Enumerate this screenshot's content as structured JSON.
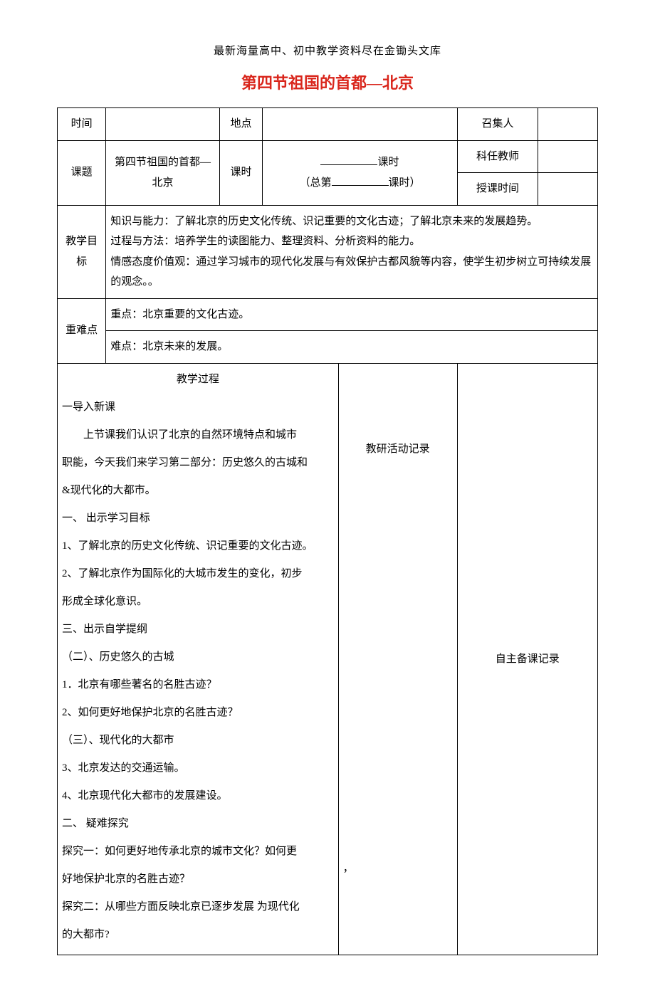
{
  "header_text": "最新海量高中、初中教学资料尽在金锄头文库",
  "title": {
    "text": "第四节祖国的首都—北京",
    "color": "#d9261c"
  },
  "row1": {
    "time_label": "时间",
    "place_label": "地点",
    "convener_label": "召集人"
  },
  "row2": {
    "topic_label": "课题",
    "topic_value": "第四节祖国的首都—北京",
    "period_label": "课时",
    "period_text_1": "课时",
    "period_text_2a": "（总第",
    "period_text_2b": "课时）",
    "teacher_label": "科任教师",
    "teachtime_label": "授课时间"
  },
  "goals": {
    "label": "教学目标",
    "line1": "知识与能力：了解北京的历史文化传统、识记重要的文化古迹；了解北京未来的发展趋势。",
    "line2": "过程与方法：培养学生的读图能力、整理资料、分析资料的能力。",
    "line3": "情感态度价值观：通过学习城市的现代化发展与有效保护古都风貌等内容，使学生初步树立可持续发展的观念。。"
  },
  "keypoints": {
    "label": "重难点",
    "line1": "重点：北京重要的文化古迹。",
    "line2": "难点：北京未来的发展。"
  },
  "process": {
    "heading": "教学过程",
    "col2_heading": "教研活动记录",
    "col3_heading": "自主备课记录",
    "lines": [
      {
        "text": "一导入新课",
        "indent": false
      },
      {
        "text": "上节课我们认识了北京的自然环境特点和城市",
        "indent": true
      },
      {
        "text": "职能，今天我们来学习第二部分：历史悠久的古城和",
        "indent": false
      },
      {
        "text": "&现代化的大都市。",
        "indent": false
      },
      {
        "text": "一、 出示学习目标",
        "indent": false
      },
      {
        "text": "1、了解北京的历史文化传统、识记重要的文化古迹。",
        "indent": false
      },
      {
        "text": "2、了解北京作为国际化的大城市发生的变化，初步",
        "indent": false
      },
      {
        "text": "形成全球化意识。",
        "indent": false
      },
      {
        "text": "三、出示自学提纲",
        "indent": false
      },
      {
        "text": "（二）、历史悠久的古城",
        "indent": false
      },
      {
        "text": "1．北京有哪些著名的名胜古迹？",
        "indent": false
      },
      {
        "text": "2、如何更好地保护北京的名胜古迹？",
        "indent": false
      },
      {
        "text": "（三）、现代化的大都市",
        "indent": false
      },
      {
        "text": "3、北京发达的交通运输。",
        "indent": false
      },
      {
        "text": "4、北京现代化大都市的发展建设。",
        "indent": false
      },
      {
        "text": "二、 疑难探究",
        "indent": false
      },
      {
        "text": " 探究一：如何更好地传承北京的城市文化？如何更",
        "indent": false
      },
      {
        "text": "好地保护北京的名胜古迹？",
        "indent": false
      },
      {
        "text": " 探究二：从哪些方面反映北京已逐步发展 为现代化",
        "indent": false
      },
      {
        "text": "的大都市?",
        "indent": false
      }
    ],
    "comma": "，"
  },
  "colors": {
    "title": "#d9261c",
    "text": "#000000",
    "border": "#000000",
    "bg": "#ffffff"
  }
}
